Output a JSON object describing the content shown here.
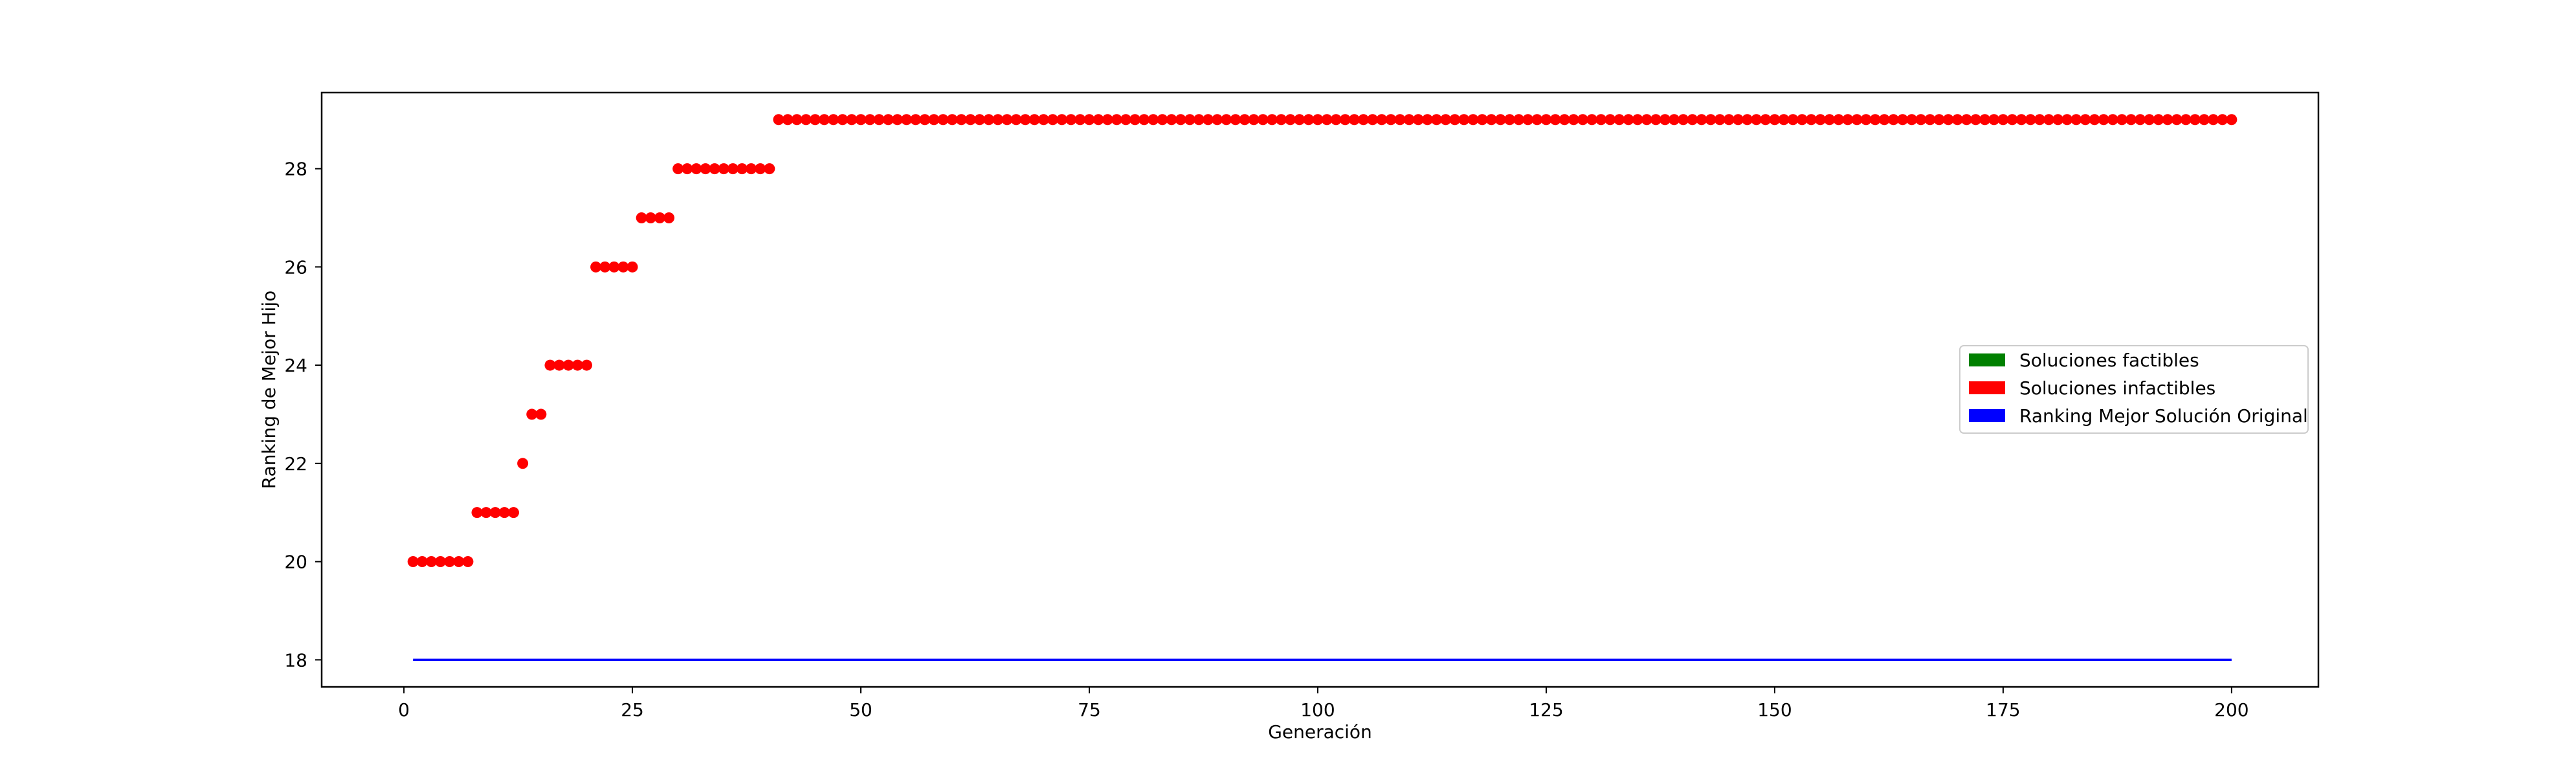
{
  "chart_data": {
    "type": "scatter",
    "title": "",
    "xlabel": "Generación",
    "ylabel": "Ranking de Mejor Hijo",
    "xlim": [
      -9,
      209.5
    ],
    "ylim": [
      17.45,
      29.55
    ],
    "xticks": [
      0,
      25,
      50,
      75,
      100,
      125,
      150,
      175,
      200
    ],
    "yticks": [
      18,
      20,
      22,
      24,
      26,
      28
    ],
    "grid": false,
    "legend_position": "center-right",
    "series": [
      {
        "name": "Soluciones infactibles",
        "kind": "scatter",
        "color": "#ff0000",
        "segments": [
          {
            "x_from": 1,
            "x_to": 7,
            "y": 20
          },
          {
            "x_from": 8,
            "x_to": 12,
            "y": 21
          },
          {
            "x_from": 13,
            "x_to": 13,
            "y": 22
          },
          {
            "x_from": 14,
            "x_to": 15,
            "y": 23
          },
          {
            "x_from": 16,
            "x_to": 20,
            "y": 24
          },
          {
            "x_from": 21,
            "x_to": 25,
            "y": 26
          },
          {
            "x_from": 26,
            "x_to": 29,
            "y": 27
          },
          {
            "x_from": 30,
            "x_to": 40,
            "y": 28
          },
          {
            "x_from": 41,
            "x_to": 200,
            "y": 29
          }
        ]
      },
      {
        "name": "Ranking Mejor Solución Original",
        "kind": "line",
        "color": "#0000ff",
        "x": [
          1,
          200
        ],
        "y": [
          18,
          18
        ]
      }
    ],
    "legend": [
      {
        "label": "Soluciones factibles",
        "color": "#008000"
      },
      {
        "label": "Soluciones infactibles",
        "color": "#ff0000"
      },
      {
        "label": "Ranking Mejor Solución Original",
        "color": "#0000ff"
      }
    ]
  }
}
